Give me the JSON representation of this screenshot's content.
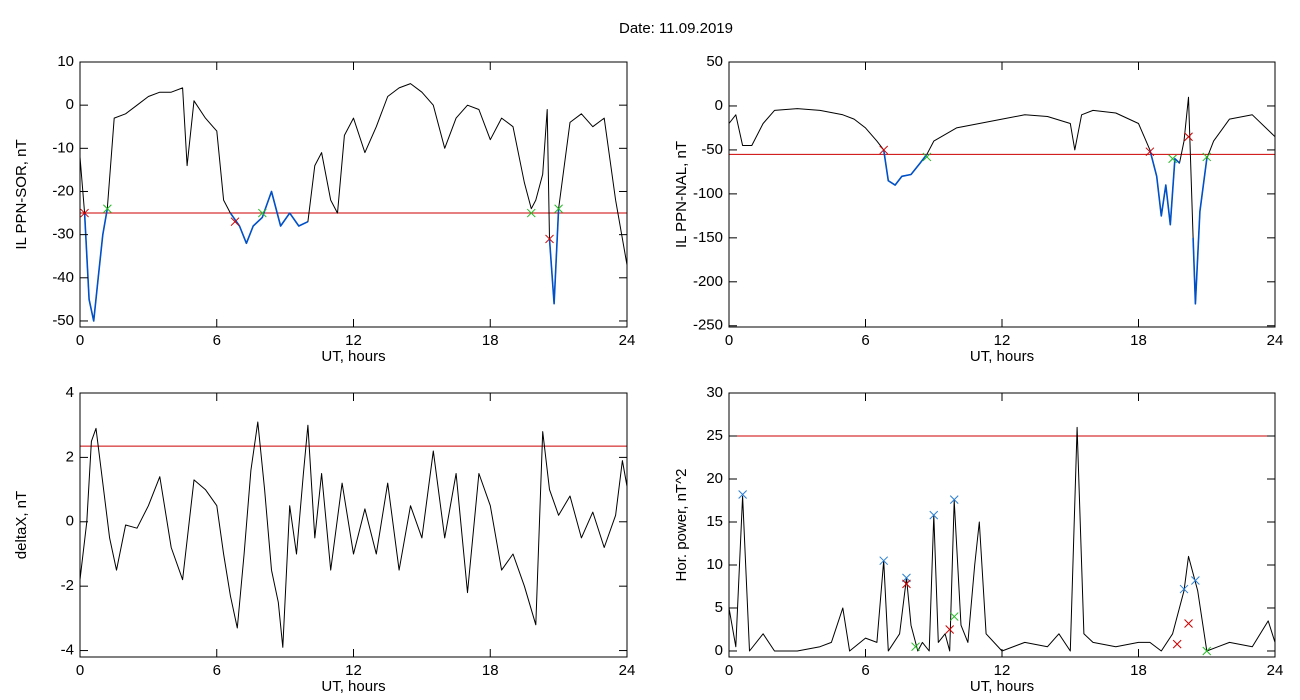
{
  "title": "Date:  11.09.2019",
  "chart_data": [
    {
      "type": "line",
      "ylabel": "IL PPN-SOR, nT",
      "xlabel": "UT, hours",
      "xlim": [
        0,
        24
      ],
      "xticks": [
        0,
        6,
        12,
        18,
        24
      ],
      "ylim": [
        -51.4,
        10
      ],
      "yticks": [
        -50,
        -40,
        -30,
        -20,
        -10,
        0,
        10
      ],
      "threshold": -25,
      "threshold_color": "#cc0000",
      "x": [
        0,
        0.2,
        0.4,
        0.6,
        0.8,
        1.0,
        1.2,
        1.5,
        2,
        2.5,
        3,
        3.5,
        4,
        4.5,
        4.7,
        5,
        5.5,
        6,
        6.3,
        6.6,
        7,
        7.3,
        7.6,
        8,
        8.4,
        8.8,
        9.2,
        9.6,
        10,
        10.3,
        10.6,
        11,
        11.3,
        11.6,
        12,
        12.5,
        13,
        13.5,
        14,
        14.5,
        15,
        15.5,
        16,
        16.5,
        17,
        17.5,
        18,
        18.5,
        19,
        19.5,
        19.8,
        20,
        20.3,
        20.5,
        20.6,
        20.8,
        21,
        21.5,
        22,
        22.5,
        23,
        23.5,
        24
      ],
      "series": [
        {
          "color": "#000000",
          "values": [
            -12,
            -25,
            -45,
            -50,
            -40,
            -30,
            -24,
            -3,
            -2,
            0,
            2,
            3,
            3,
            4,
            -14,
            1,
            -3,
            -6,
            -22,
            -25,
            -28,
            -32,
            -28,
            -26,
            -20,
            -28,
            -25,
            -28,
            -27,
            -14,
            -11,
            -22,
            -25,
            -7,
            -3,
            -11,
            -5,
            2,
            4,
            5,
            3,
            0,
            -10,
            -3,
            0,
            -1,
            -8,
            -3,
            -5,
            -18,
            -24,
            -22,
            -16,
            -1,
            -31,
            -46,
            -24,
            -4,
            -2,
            -5,
            -3,
            -22,
            -37
          ]
        },
        {
          "color": "#0050c8",
          "values": [
            null,
            -25,
            -45,
            -50,
            -40,
            -30,
            -24,
            null,
            null,
            null,
            null,
            null,
            null,
            null,
            null,
            null,
            null,
            null,
            null,
            -25,
            -28,
            -32,
            -28,
            -26,
            -20,
            -28,
            -25,
            -28,
            -27,
            null,
            null,
            null,
            null,
            null,
            null,
            null,
            null,
            null,
            null,
            null,
            null,
            null,
            null,
            null,
            null,
            null,
            null,
            null,
            null,
            null,
            null,
            null,
            null,
            null,
            -31,
            -46,
            -24,
            null,
            null,
            null,
            null,
            null,
            null
          ]
        },
        {
          "color": "#cc0000",
          "marker": "x",
          "x": [
            0.2,
            6.8,
            20.6
          ],
          "values": [
            -25,
            -27,
            -31
          ]
        },
        {
          "color": "#22bb22",
          "marker": "x",
          "x": [
            1.2,
            8,
            19.8,
            21
          ],
          "values": [
            -24,
            -25,
            -25,
            -24
          ]
        }
      ]
    },
    {
      "type": "line",
      "ylabel": "IL PPN-NAL, nT",
      "xlabel": "UT, hours",
      "xlim": [
        0,
        24
      ],
      "xticks": [
        0,
        6,
        12,
        18,
        24
      ],
      "ylim": [
        -251.4,
        50
      ],
      "yticks": [
        -250,
        -200,
        -150,
        -100,
        -50,
        0,
        50
      ],
      "threshold": -55,
      "threshold_color": "#cc0000",
      "x": [
        0,
        0.3,
        0.6,
        1,
        1.5,
        2,
        3,
        4,
        5,
        5.5,
        6,
        6.5,
        6.8,
        7,
        7.3,
        7.6,
        8,
        8.4,
        8.7,
        9,
        10,
        11,
        12,
        13,
        14,
        15,
        15.2,
        15.5,
        16,
        17,
        18,
        18.5,
        18.8,
        19,
        19.2,
        19.4,
        19.6,
        19.8,
        20,
        20.2,
        20.4,
        20.5,
        20.7,
        21,
        21.3,
        22,
        23,
        24
      ],
      "series": [
        {
          "color": "#000000",
          "values": [
            -20,
            -10,
            -45,
            -45,
            -20,
            -5,
            -3,
            -5,
            -10,
            -15,
            -25,
            -40,
            -50,
            -85,
            -90,
            -80,
            -78,
            -65,
            -55,
            -40,
            -25,
            -20,
            -15,
            -10,
            -12,
            -20,
            -50,
            -10,
            -5,
            -8,
            -20,
            -50,
            -80,
            -125,
            -90,
            -135,
            -60,
            -65,
            -40,
            10,
            -150,
            -225,
            -120,
            -60,
            -40,
            -15,
            -10,
            -35
          ]
        },
        {
          "color": "#0050c8",
          "values": [
            null,
            null,
            null,
            null,
            null,
            null,
            null,
            null,
            null,
            null,
            null,
            null,
            -50,
            -85,
            -90,
            -80,
            -78,
            -65,
            -55,
            null,
            null,
            null,
            null,
            null,
            null,
            null,
            null,
            null,
            null,
            null,
            null,
            -50,
            -80,
            -125,
            -90,
            -135,
            -60,
            -65,
            null,
            null,
            -150,
            -225,
            -120,
            -60,
            null,
            null,
            null,
            null
          ]
        },
        {
          "color": "#cc0000",
          "marker": "x",
          "x": [
            6.8,
            18.5,
            20.2
          ],
          "values": [
            -50,
            -52,
            -35
          ]
        },
        {
          "color": "#22bb22",
          "marker": "x",
          "x": [
            8.7,
            19.5,
            21
          ],
          "values": [
            -58,
            -60,
            -58
          ]
        }
      ]
    },
    {
      "type": "line",
      "ylabel": "deltaX, nT",
      "xlabel": "UT, hours",
      "xlim": [
        0,
        24
      ],
      "xticks": [
        0,
        6,
        12,
        18,
        24
      ],
      "ylim": [
        -4.2,
        4
      ],
      "yticks": [
        -4,
        -2,
        0,
        2,
        4
      ],
      "threshold": 2.35,
      "threshold_color": "#cc0000",
      "x": [
        0,
        0.3,
        0.5,
        0.7,
        1,
        1.3,
        1.6,
        2,
        2.5,
        3,
        3.5,
        4,
        4.5,
        5,
        5.5,
        6,
        6.3,
        6.6,
        6.9,
        7.2,
        7.5,
        7.8,
        8.1,
        8.4,
        8.7,
        8.9,
        9.2,
        9.5,
        9.8,
        10,
        10.3,
        10.6,
        11,
        11.5,
        12,
        12.5,
        13,
        13.5,
        14,
        14.5,
        15,
        15.5,
        16,
        16.5,
        17,
        17.5,
        18,
        18.5,
        19,
        19.5,
        20,
        20.3,
        20.6,
        21,
        21.5,
        22,
        22.5,
        23,
        23.5,
        23.8,
        24
      ],
      "series": [
        {
          "color": "#000000",
          "values": [
            -1.8,
            0,
            2.5,
            2.9,
            1.2,
            -0.5,
            -1.5,
            -0.1,
            -0.2,
            0.5,
            1.4,
            -0.8,
            -1.8,
            1.3,
            1.0,
            0.5,
            -1,
            -2.3,
            -3.3,
            -1,
            1.6,
            3.1,
            1,
            -1.5,
            -2.5,
            -3.9,
            0.5,
            -1,
            1.5,
            3,
            -0.5,
            1.5,
            -1.5,
            1.2,
            -1,
            0.4,
            -1,
            1.2,
            -1.5,
            0.5,
            -0.5,
            2.2,
            -0.5,
            1.5,
            -2.2,
            1.5,
            0.5,
            -1.5,
            -1,
            -2,
            -3.2,
            2.8,
            1,
            0.2,
            0.8,
            -0.5,
            0.3,
            -0.8,
            0.2,
            1.9,
            1.1
          ]
        }
      ]
    },
    {
      "type": "line",
      "ylabel": "Hor. power, nT^2",
      "xlabel": "UT, hours",
      "xlim": [
        0,
        24
      ],
      "xticks": [
        0,
        6,
        12,
        18,
        24
      ],
      "ylim": [
        -0.7,
        30
      ],
      "yticks": [
        0,
        5,
        10,
        15,
        20,
        25,
        30
      ],
      "threshold": 25,
      "threshold_color": "#cc0000",
      "x": [
        0,
        0.3,
        0.6,
        0.9,
        1.5,
        2,
        3,
        4,
        4.5,
        5,
        5.3,
        6,
        6.5,
        6.8,
        7,
        7.5,
        7.8,
        8,
        8.3,
        8.5,
        8.8,
        9,
        9.2,
        9.5,
        9.7,
        9.9,
        10.2,
        10.5,
        10.8,
        11,
        11.3,
        12,
        13,
        14,
        14.5,
        15,
        15.3,
        15.6,
        16,
        17,
        18,
        18.5,
        19,
        19.5,
        20,
        20.2,
        20.6,
        21,
        21.5,
        22,
        23,
        23.7,
        24
      ],
      "series": [
        {
          "color": "#000000",
          "values": [
            5,
            0.5,
            18,
            0,
            2,
            0,
            0,
            0.5,
            1,
            5,
            0,
            1.5,
            1,
            10.5,
            0,
            2,
            8.5,
            3,
            0,
            1,
            0,
            15.8,
            1,
            2,
            0,
            17.5,
            3,
            1,
            10,
            15,
            2,
            0,
            1,
            0.5,
            2,
            0,
            26,
            2,
            1,
            0.5,
            1,
            1,
            0,
            2,
            7,
            11,
            7,
            0,
            0.5,
            1,
            0.5,
            3.5,
            1
          ]
        },
        {
          "color": "#2a7fd4",
          "marker": "x",
          "x": [
            0.6,
            6.8,
            7.8,
            9,
            9.9,
            20,
            20.5
          ],
          "values": [
            18.2,
            10.5,
            8.5,
            15.8,
            17.6,
            7.2,
            8.2
          ]
        },
        {
          "color": "#cc0000",
          "marker": "x",
          "x": [
            7.8,
            9.7,
            19.7,
            20.2
          ],
          "values": [
            7.8,
            2.5,
            0.8,
            3.2
          ]
        },
        {
          "color": "#22bb22",
          "marker": "x",
          "x": [
            8.2,
            9.9,
            21
          ],
          "values": [
            0.5,
            4,
            0
          ]
        }
      ]
    }
  ]
}
